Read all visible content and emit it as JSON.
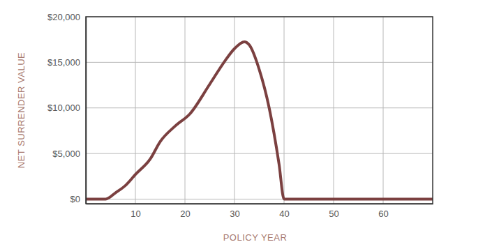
{
  "chart_data": {
    "type": "line",
    "x_label": "POLICY YEAR",
    "y_label": "NET SURRENDER VALUE",
    "x": [
      0,
      4,
      6,
      8,
      10,
      13,
      15,
      18,
      21,
      25,
      28,
      30,
      32,
      33,
      35,
      37,
      39,
      40,
      70
    ],
    "values": [
      0,
      0,
      700,
      1500,
      2700,
      4400,
      6300,
      8000,
      9350,
      12600,
      15100,
      16500,
      17250,
      16900,
      14200,
      10000,
      3800,
      0,
      0
    ],
    "color": "#7b4040",
    "xlim": [
      0,
      70
    ],
    "ylim": [
      -500,
      20000
    ],
    "xticks": [
      10,
      20,
      30,
      40,
      50,
      60
    ],
    "yticks": [
      {
        "value": 0,
        "label": "$0"
      },
      {
        "value": 5000,
        "label": "$5,000"
      },
      {
        "value": 10000,
        "label": "$10,000"
      },
      {
        "value": 15000,
        "label": "$15,000"
      },
      {
        "value": 20000,
        "label": "$20,000"
      }
    ],
    "grid": true
  }
}
